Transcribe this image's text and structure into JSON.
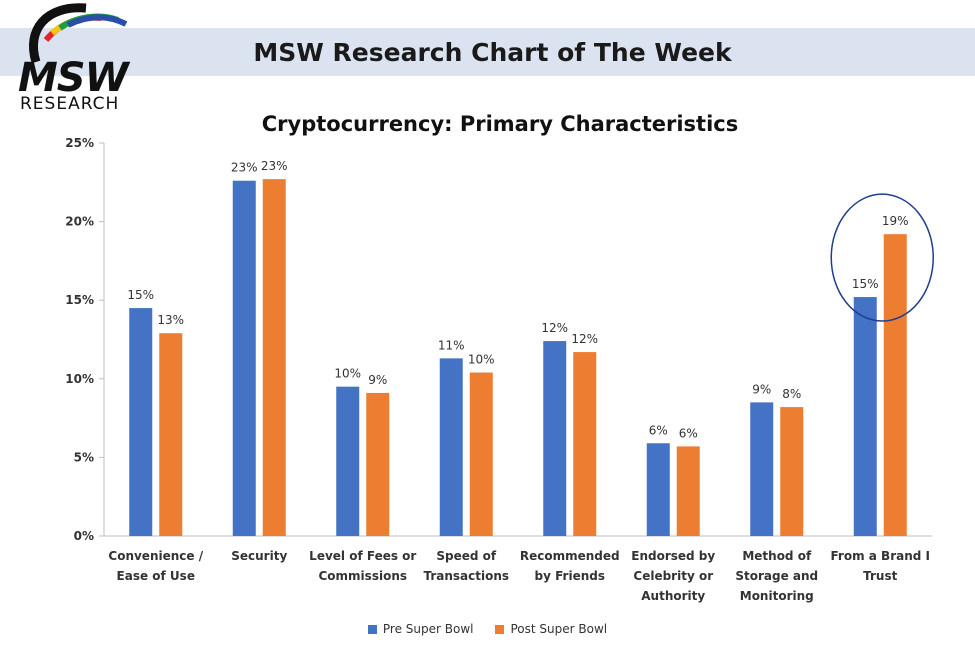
{
  "header": {
    "title": "MSW Research Chart of The Week",
    "logo_text": "MSW",
    "logo_subtext": "RESEARCH"
  },
  "colors": {
    "banner": "#dbe3f1",
    "pre": "#4472c4",
    "post": "#ed7d31",
    "highlight_circle": "#1f3f8c"
  },
  "chart_data": {
    "type": "bar",
    "title": "Cryptocurrency: Primary Characteristics",
    "xlabel": "",
    "ylabel": "",
    "ylim": [
      0,
      25
    ],
    "yticks": [
      "0%",
      "5%",
      "10%",
      "15%",
      "20%",
      "25%"
    ],
    "grid": false,
    "legend_position": "bottom",
    "categories": [
      [
        "Convenience /",
        "Ease of Use"
      ],
      [
        "Security"
      ],
      [
        "Level of Fees or",
        "Commissions"
      ],
      [
        "Speed of",
        "Transactions"
      ],
      [
        "Recommended",
        "by Friends"
      ],
      [
        "Endorsed by",
        "Celebrity or",
        "Authority"
      ],
      [
        "Method of",
        "Storage and",
        "Monitoring"
      ],
      [
        "From a Brand I",
        "Trust"
      ]
    ],
    "series": [
      {
        "name": "Pre Super Bowl",
        "values": [
          14.5,
          22.6,
          9.5,
          11.3,
          12.4,
          5.9,
          8.5,
          15.2
        ],
        "labels": [
          "15%",
          "23%",
          "10%",
          "11%",
          "12%",
          "6%",
          "9%",
          "15%"
        ]
      },
      {
        "name": "Post Super Bowl",
        "values": [
          12.9,
          22.7,
          9.1,
          10.4,
          11.7,
          5.7,
          8.2,
          19.2
        ],
        "labels": [
          "13%",
          "23%",
          "9%",
          "10%",
          "12%",
          "6%",
          "8%",
          "19%"
        ]
      }
    ],
    "highlight": "From a Brand I Trust"
  }
}
